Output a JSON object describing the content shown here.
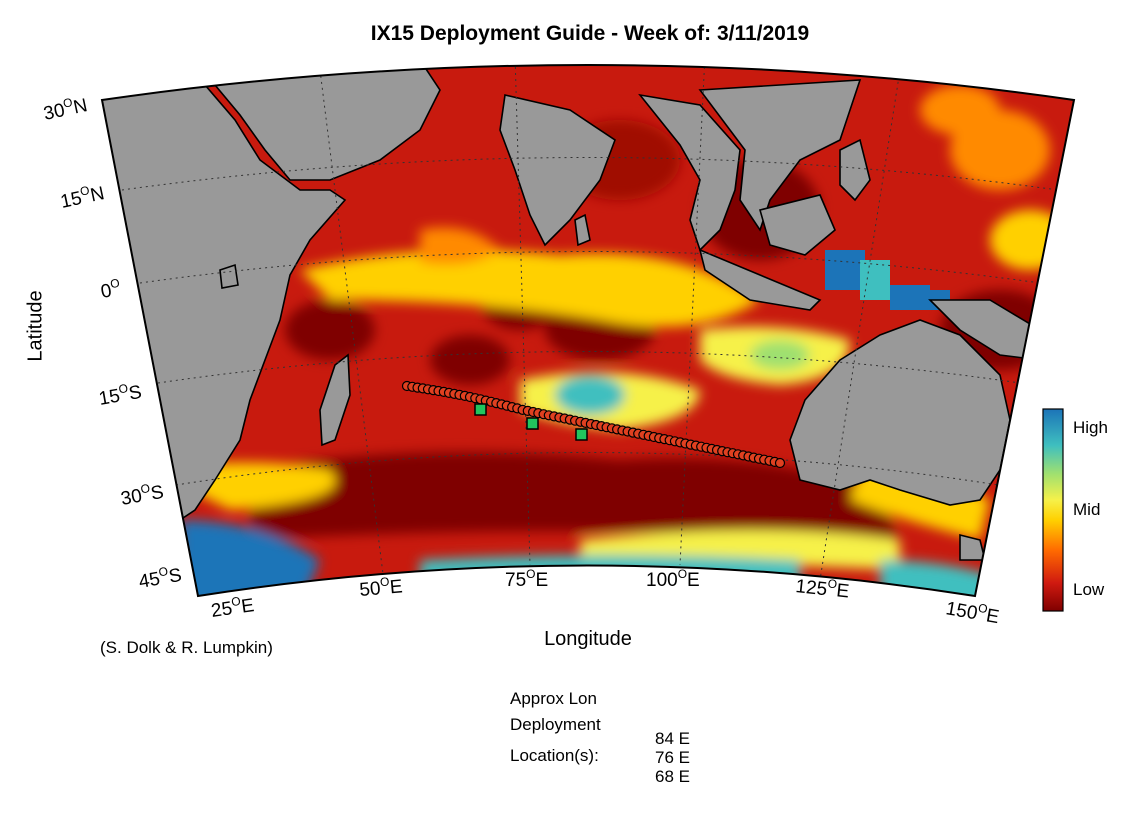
{
  "title": "IX15 Deployment Guide - Week of: 3/11/2019",
  "axes": {
    "ylabel": "Latitude",
    "xlabel": "Longitude",
    "lat_ticks": [
      {
        "label": "30",
        "sup": "O",
        "hem": "N"
      },
      {
        "label": "15",
        "sup": "O",
        "hem": "N"
      },
      {
        "label": "0",
        "sup": "O",
        "hem": ""
      },
      {
        "label": "15",
        "sup": "O",
        "hem": "S"
      },
      {
        "label": "30",
        "sup": "O",
        "hem": "S"
      },
      {
        "label": "45",
        "sup": "O",
        "hem": "S"
      }
    ],
    "lon_ticks": [
      {
        "label": "25",
        "sup": "O",
        "hem": "E"
      },
      {
        "label": "50",
        "sup": "O",
        "hem": "E"
      },
      {
        "label": "75",
        "sup": "O",
        "hem": "E"
      },
      {
        "label": "100",
        "sup": "O",
        "hem": "E"
      },
      {
        "label": "125",
        "sup": "O",
        "hem": "E"
      },
      {
        "label": "150",
        "sup": "O",
        "hem": "E"
      }
    ]
  },
  "colorbar": {
    "high": "High",
    "mid": "Mid",
    "low": "Low",
    "colors": [
      "#7f0000",
      "#d01a10",
      "#ff6a00",
      "#ffd000",
      "#f6f14a",
      "#9fe070",
      "#3fbfbf",
      "#1c74b8"
    ]
  },
  "credit": "(S. Dolk & R. Lumpkin)",
  "deployment": {
    "label1": "Approx Lon",
    "label2": "Deployment",
    "label3": "Location(s):",
    "values": [
      "84 E",
      "76 E",
      "68 E"
    ]
  },
  "map_colors": {
    "land": "#999999",
    "ocean_low": "#7f0000",
    "ocean_mid": "#ffd000",
    "ocean_high": "#1c74b8",
    "deploy_marker": "#22c55e"
  }
}
